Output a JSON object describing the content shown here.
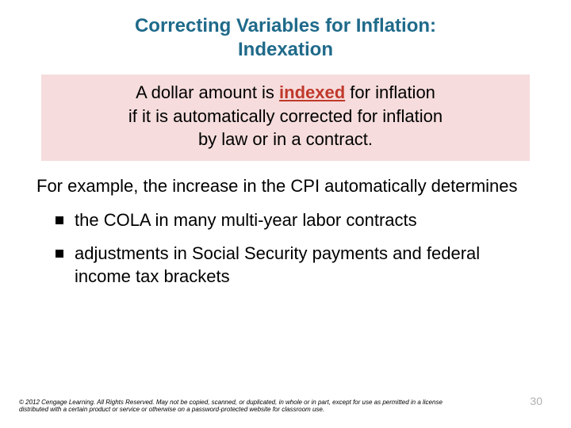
{
  "colors": {
    "title_color": "#1f6a8a",
    "definition_bg": "#f6dcdc",
    "highlight_color": "#c0392b",
    "bullet_color": "#000000",
    "pagenum_color": "#b0b0b0",
    "text_color": "#000000"
  },
  "title": {
    "line1": "Correcting Variables for Inflation:",
    "line2": "Indexation"
  },
  "definition": {
    "pre": "A dollar amount is ",
    "word": "indexed",
    "mid": " for inflation",
    "line2": "if it is automatically corrected for inflation",
    "line3": "by law or in a contract."
  },
  "body": {
    "lead": "For example, the increase in the CPI automatically determines"
  },
  "bullets": [
    "the COLA in many multi-year labor contracts",
    "adjustments in Social Security payments and federal income tax brackets"
  ],
  "copyright": "© 2012 Cengage Learning. All Rights Reserved. May not be copied, scanned, or duplicated, in whole or in part, except for use as permitted in a license distributed with a certain product or service or otherwise on a password-protected website for classroom use.",
  "pageNumber": "30"
}
